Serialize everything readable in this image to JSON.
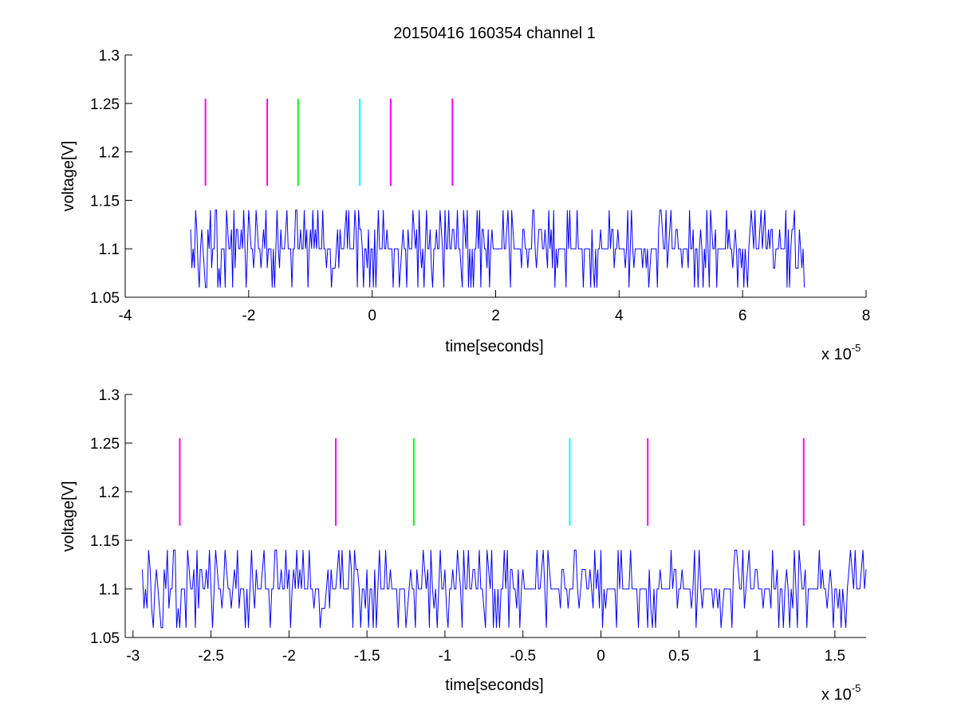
{
  "chart_data": [
    {
      "type": "line",
      "title": "20150416 160354 channel 1",
      "xlabel": "time[seconds]",
      "ylabel": "voltage[V]",
      "x_multiplier": "x 10",
      "x_multiplier_exp": "-5",
      "xlim": [
        -4,
        8
      ],
      "ylim": [
        1.05,
        1.3
      ],
      "xticks": [
        -4,
        -2,
        0,
        2,
        4,
        6,
        8
      ],
      "xtick_labels": [
        "-4",
        "-2",
        "0",
        "2",
        "4",
        "6",
        "8"
      ],
      "yticks": [
        1.05,
        1.1,
        1.15,
        1.2,
        1.25,
        1.3
      ],
      "ytick_labels": [
        "1.05",
        "1.1",
        "1.15",
        "1.2",
        "1.25",
        "1.3"
      ],
      "signal": {
        "color": "#0000ff",
        "x_range": [
          -2.94,
          7.0
        ],
        "levels": [
          1.06,
          1.08,
          1.1,
          1.12,
          1.14
        ],
        "baseline": 1.1
      },
      "markers": [
        {
          "x": -2.7,
          "y_range": [
            1.165,
            1.255
          ],
          "color": "#ff00ff"
        },
        {
          "x": -1.7,
          "y_range": [
            1.165,
            1.255
          ],
          "color": "#ff00ff"
        },
        {
          "x": -1.2,
          "y_range": [
            1.165,
            1.255
          ],
          "color": "#00ff00"
        },
        {
          "x": -0.2,
          "y_range": [
            1.165,
            1.255
          ],
          "color": "#00ffff"
        },
        {
          "x": 0.3,
          "y_range": [
            1.165,
            1.255
          ],
          "color": "#ff00ff"
        },
        {
          "x": 1.3,
          "y_range": [
            1.165,
            1.255
          ],
          "color": "#ff00ff"
        }
      ]
    },
    {
      "type": "line",
      "xlabel": "time[seconds]",
      "ylabel": "voltage[V]",
      "x_multiplier": "x 10",
      "x_multiplier_exp": "-5",
      "xlim": [
        -3.05,
        1.7
      ],
      "ylim": [
        1.05,
        1.3
      ],
      "xticks": [
        -3,
        -2.5,
        -2,
        -1.5,
        -1,
        -0.5,
        0,
        0.5,
        1,
        1.5
      ],
      "xtick_labels": [
        "-3",
        "-2.5",
        "-2",
        "-1.5",
        "-1",
        "-0.5",
        "0",
        "0.5",
        "1",
        "1.5"
      ],
      "yticks": [
        1.05,
        1.1,
        1.15,
        1.2,
        1.25,
        1.3
      ],
      "ytick_labels": [
        "1.05",
        "1.1",
        "1.15",
        "1.2",
        "1.25",
        "1.3"
      ],
      "signal": {
        "color": "#0000ff",
        "x_range": [
          -2.94,
          1.7
        ],
        "levels": [
          1.06,
          1.08,
          1.1,
          1.12,
          1.14
        ],
        "baseline": 1.1
      },
      "markers": [
        {
          "x": -2.7,
          "y_range": [
            1.165,
            1.255
          ],
          "color": "#ff00ff"
        },
        {
          "x": -1.7,
          "y_range": [
            1.165,
            1.255
          ],
          "color": "#ff00ff"
        },
        {
          "x": -1.2,
          "y_range": [
            1.165,
            1.255
          ],
          "color": "#00ff00"
        },
        {
          "x": -0.2,
          "y_range": [
            1.165,
            1.255
          ],
          "color": "#00ffff"
        },
        {
          "x": 0.3,
          "y_range": [
            1.165,
            1.255
          ],
          "color": "#ff00ff"
        },
        {
          "x": 1.3,
          "y_range": [
            1.165,
            1.255
          ],
          "color": "#ff00ff"
        }
      ]
    }
  ]
}
